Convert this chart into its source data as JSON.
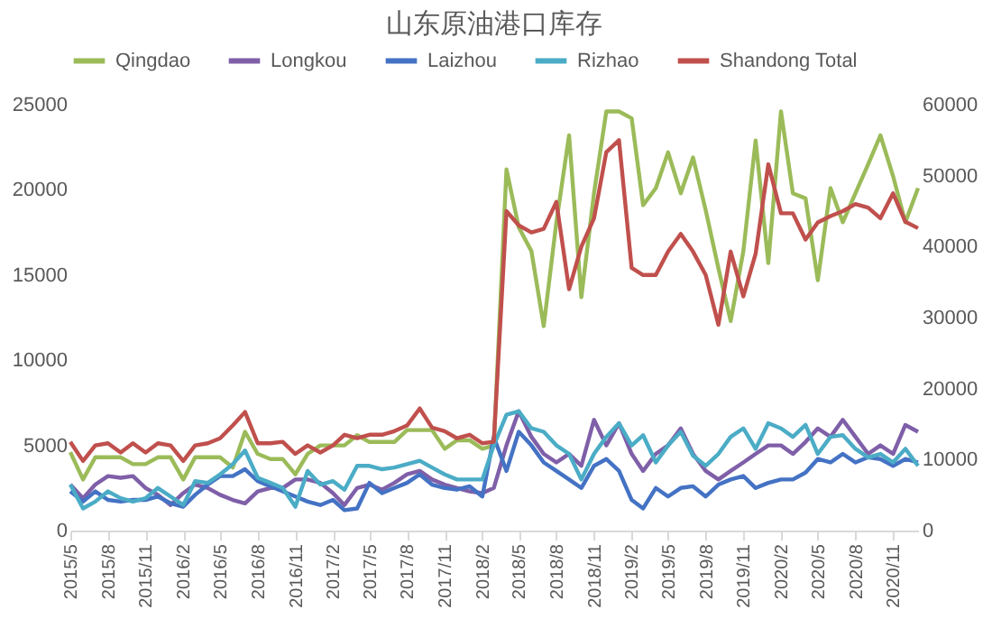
{
  "chart_data": {
    "type": "line",
    "title": "山东原油港口库存",
    "x": [
      "2015-05",
      "2015-06",
      "2015-07",
      "2015-08",
      "2015-09",
      "2015-10",
      "2015-11",
      "2015-12",
      "2016-01",
      "2016-02",
      "2016-03",
      "2016-04",
      "2016-05",
      "2016-06",
      "2016-07",
      "2016-08",
      "2016-09",
      "2016-10",
      "2016-11",
      "2016-12",
      "2017-01",
      "2017-02",
      "2017-03",
      "2017-04",
      "2017-05",
      "2017-06",
      "2017-07",
      "2017-08",
      "2017-09",
      "2017-10",
      "2017-11",
      "2017-12",
      "2018-01",
      "2018-02",
      "2018-03",
      "2018-04",
      "2018-05",
      "2018-06",
      "2018-07",
      "2018-08",
      "2018-09",
      "2018-10",
      "2018-11",
      "2018-12",
      "2019-01",
      "2019-02",
      "2019-03",
      "2019-04",
      "2019-05",
      "2019-06",
      "2019-07",
      "2019-08",
      "2019-09",
      "2019-10",
      "2019-11",
      "2019-12",
      "2020-01",
      "2020-02",
      "2020-03",
      "2020-04",
      "2020-05",
      "2020-06",
      "2020-07",
      "2020-08",
      "2020-09",
      "2020-10",
      "2020-11",
      "2020-12",
      "2021-01"
    ],
    "series": [
      {
        "name": "Qingdao",
        "color": "#9bbb59",
        "values": [
          4600,
          3000,
          4300,
          4300,
          4300,
          3900,
          3900,
          4300,
          4300,
          3000,
          4300,
          4300,
          4300,
          3700,
          5800,
          4500,
          4200,
          4200,
          3300,
          4500,
          5000,
          5000,
          5000,
          5600,
          5200,
          5200,
          5200,
          5900,
          5900,
          5900,
          4800,
          5300,
          5300,
          4800,
          5000,
          21200,
          17800,
          16400,
          12000,
          18100,
          23200,
          13700,
          19800,
          24600,
          24600,
          24200,
          19100,
          20100,
          22200,
          19800,
          21900,
          18800,
          15400,
          12300,
          16400,
          22900,
          15700,
          24600,
          19800,
          19500,
          14700,
          20100,
          18100,
          19800,
          21500,
          23200,
          20800,
          18100,
          20100
        ]
      },
      {
        "name": "Longkou",
        "color": "#7f5fa8",
        "values": [
          2700,
          1900,
          2700,
          3200,
          3100,
          3200,
          2500,
          2100,
          1500,
          2200,
          2700,
          2500,
          2100,
          1800,
          1600,
          2300,
          2500,
          2500,
          3000,
          3000,
          2800,
          2200,
          1500,
          2500,
          2700,
          2400,
          2800,
          3300,
          3500,
          3000,
          2700,
          2500,
          2300,
          2200,
          2500,
          5000,
          7000,
          5500,
          4500,
          4000,
          4500,
          3800,
          6500,
          5000,
          6300,
          4500,
          3500,
          4500,
          5000,
          6000,
          4500,
          3500,
          3000,
          3500,
          4000,
          4500,
          5000,
          5000,
          4500,
          5200,
          6000,
          5500,
          6500,
          5500,
          4500,
          5000,
          4500,
          6200,
          5800
        ]
      },
      {
        "name": "Laizhou",
        "color": "#4472c4",
        "values": [
          2300,
          1700,
          2300,
          1800,
          1700,
          1800,
          1800,
          2000,
          1600,
          1400,
          2100,
          2700,
          3200,
          3200,
          3600,
          2900,
          2600,
          2300,
          2000,
          1700,
          1500,
          1800,
          1200,
          1300,
          2800,
          2200,
          2500,
          2800,
          3300,
          2700,
          2500,
          2400,
          2600,
          2000,
          5500,
          3500,
          5800,
          5000,
          4000,
          3500,
          3000,
          2500,
          3800,
          4200,
          3500,
          1800,
          1300,
          2500,
          2000,
          2500,
          2600,
          2000,
          2700,
          3000,
          3200,
          2500,
          2800,
          3000,
          3000,
          3400,
          4200,
          4000,
          4500,
          4000,
          4300,
          4200,
          3800,
          4200,
          4000
        ]
      },
      {
        "name": "Rizhao",
        "color": "#4bacc6",
        "values": [
          2700,
          1300,
          1700,
          2300,
          1900,
          1700,
          1900,
          2500,
          2000,
          1500,
          2900,
          2800,
          3300,
          3900,
          4700,
          3100,
          2800,
          2500,
          1400,
          3500,
          2700,
          2900,
          2400,
          3800,
          3800,
          3600,
          3700,
          3900,
          4100,
          3700,
          3300,
          3000,
          3000,
          3000,
          5000,
          6800,
          7000,
          6000,
          5800,
          5000,
          4500,
          3000,
          4500,
          5500,
          6300,
          5000,
          5600,
          4000,
          5000,
          5800,
          4400,
          3800,
          4500,
          5500,
          6000,
          4800,
          6300,
          6000,
          5500,
          6200,
          4500,
          5500,
          5600,
          4800,
          4300,
          4500,
          4000,
          4800,
          3800
        ]
      },
      {
        "name": "Shandong Total",
        "color": "#c0504d",
        "axis": "y2",
        "values": [
          12500,
          9800,
          12000,
          12300,
          11000,
          12300,
          11000,
          12300,
          12000,
          9800,
          12000,
          12300,
          13000,
          14800,
          16700,
          12300,
          12300,
          12500,
          10800,
          12000,
          11000,
          12000,
          13500,
          13000,
          13500,
          13500,
          14000,
          14800,
          17200,
          14500,
          14000,
          13000,
          13500,
          12300,
          12500,
          45000,
          43000,
          42000,
          42500,
          46300,
          34000,
          40000,
          44000,
          53300,
          55000,
          37000,
          36000,
          36000,
          39300,
          41800,
          39300,
          36000,
          29000,
          39300,
          33000,
          39000,
          51600,
          44700,
          44700,
          41000,
          43400,
          44300,
          45000,
          46000,
          45500,
          44000,
          47500,
          43500,
          42600
        ]
      }
    ],
    "xlim": [
      "2015-05",
      "2021-01"
    ],
    "xticks": [
      {
        "value": "2015-05",
        "label": "2015/5"
      },
      {
        "value": "2015-08",
        "label": "2015/8"
      },
      {
        "value": "2015-11",
        "label": "2015/11"
      },
      {
        "value": "2016-02",
        "label": "2016/2"
      },
      {
        "value": "2016-05",
        "label": "2016/5"
      },
      {
        "value": "2016-08",
        "label": "2016/8"
      },
      {
        "value": "2016-11",
        "label": "2016/11"
      },
      {
        "value": "2017-02",
        "label": "2017/2"
      },
      {
        "value": "2017-05",
        "label": "2017/5"
      },
      {
        "value": "2017-08",
        "label": "2017/8"
      },
      {
        "value": "2017-11",
        "label": "2017/11"
      },
      {
        "value": "2018-02",
        "label": "2018/2"
      },
      {
        "value": "2018-05",
        "label": "2018/5"
      },
      {
        "value": "2018-08",
        "label": "2018/8"
      },
      {
        "value": "2018-11",
        "label": "2018/11"
      },
      {
        "value": "2019-02",
        "label": "2019/2"
      },
      {
        "value": "2019-05",
        "label": "2019/5"
      },
      {
        "value": "2019-08",
        "label": "2019/8"
      },
      {
        "value": "2019-11",
        "label": "2019/11"
      },
      {
        "value": "2020-02",
        "label": "2020/2"
      },
      {
        "value": "2020-05",
        "label": "2020/5"
      },
      {
        "value": "2020-08",
        "label": "2020/8"
      },
      {
        "value": "2020-11",
        "label": "2020/11"
      }
    ],
    "ylim": [
      0,
      25000
    ],
    "yticks": [
      0,
      5000,
      10000,
      15000,
      20000,
      25000
    ],
    "y2lim": [
      0,
      60000
    ],
    "y2ticks": [
      0,
      10000,
      20000,
      30000,
      40000,
      50000,
      60000
    ],
    "grid": false,
    "legend": "top"
  }
}
